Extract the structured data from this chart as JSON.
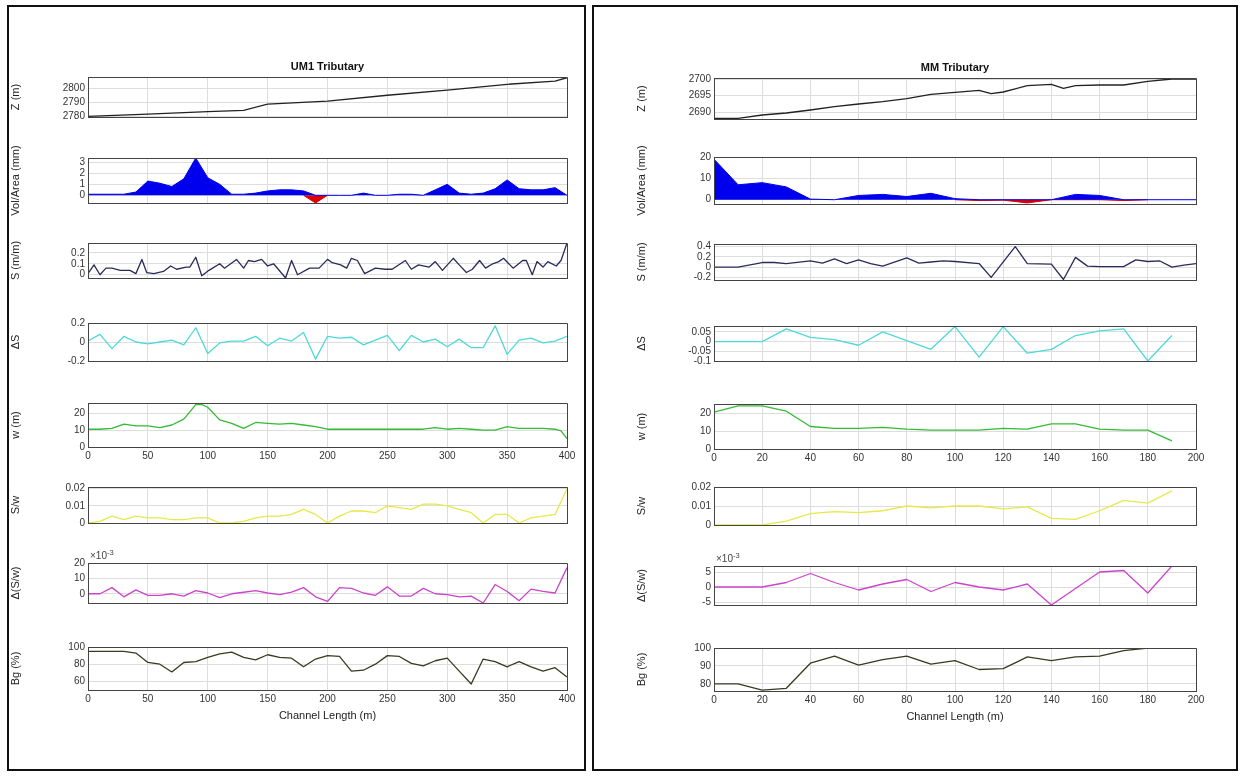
{
  "chart_data": [
    {
      "type": "line",
      "title": "UM1 Tributary",
      "ylabel": "Z (m)",
      "color": "#222222",
      "x": [
        0,
        50,
        100,
        130,
        150,
        200,
        250,
        300,
        350,
        390,
        400
      ],
      "values": [
        2780,
        2781.6,
        2783.4,
        2784.2,
        2788.7,
        2790.8,
        2795,
        2798.6,
        2802.8,
        2805,
        2807.5
      ],
      "xlim": [
        0,
        400
      ],
      "xticks": [
        0,
        50,
        100,
        150,
        200,
        250,
        300,
        350,
        400
      ],
      "ylim": [
        2779.5,
        2808
      ],
      "yticks": [
        2780,
        2790,
        2800
      ],
      "grid": true,
      "tick_labels": "y"
    },
    {
      "type": "area",
      "ylabel": "Vol/Area (mm)",
      "series": [
        {
          "type": "area",
          "color": "#0000ee",
          "x": [
            0,
            20,
            30,
            40,
            50,
            60,
            70,
            80,
            90,
            100,
            110,
            120,
            130,
            140,
            150,
            160,
            170,
            180,
            185,
            190,
            200,
            210,
            220,
            230,
            240,
            250,
            260,
            270,
            280,
            290,
            300,
            310,
            320,
            330,
            340,
            350,
            360,
            370,
            380,
            390,
            400
          ],
          "values": [
            0.1,
            0.1,
            0.1,
            0.3,
            1.3,
            1.1,
            0.8,
            1.5,
            3.4,
            1.6,
            1,
            0.1,
            0.1,
            0.2,
            0.4,
            0.5,
            0.5,
            0.4,
            0.2,
            0,
            0,
            0,
            0,
            0.2,
            0,
            0,
            0.1,
            0.1,
            0,
            0.5,
            1,
            0.2,
            0.1,
            0.2,
            0.6,
            1.4,
            0.6,
            0.5,
            0.5,
            0.7,
            0
          ]
        },
        {
          "type": "area",
          "color": "#dd0000",
          "x": [
            180,
            190,
            200
          ],
          "values": [
            0,
            -0.7,
            0
          ]
        }
      ],
      "xlim": [
        0,
        400
      ],
      "xticks": [
        0,
        50,
        100,
        150,
        200,
        250,
        300,
        350,
        400
      ],
      "ylim": [
        -0.7,
        3.4
      ],
      "yticks": [
        0,
        1,
        2,
        3
      ],
      "grid": true,
      "tick_labels": "y"
    },
    {
      "type": "line",
      "ylabel": "S (m/m)",
      "color": "#2b2b5a",
      "x": [
        0,
        5,
        10,
        15,
        20,
        27,
        35,
        40,
        45,
        49,
        55,
        63,
        69,
        74,
        82,
        85,
        90,
        95,
        101,
        110,
        114,
        124,
        130,
        134,
        139,
        145,
        150,
        155,
        165,
        170,
        175,
        185,
        193,
        200,
        204,
        211,
        216,
        220,
        225,
        231,
        240,
        248,
        254,
        265,
        270,
        276,
        285,
        290,
        296,
        305,
        310,
        316,
        321,
        327,
        332,
        338,
        343,
        347,
        355,
        363,
        366,
        371,
        375,
        380,
        384,
        391,
        395,
        400
      ],
      "values": [
        0.01,
        0.09,
        0,
        0.06,
        0.06,
        0.04,
        0.04,
        0.01,
        0.14,
        0.02,
        0.01,
        0.03,
        0.08,
        0.05,
        0.07,
        0.07,
        0.16,
        -0.01,
        0.04,
        0.1,
        0.06,
        0.14,
        0.06,
        0.13,
        0.12,
        0.14,
        0.08,
        0.1,
        -0.03,
        0.13,
        0,
        0.06,
        0.06,
        0.14,
        0.11,
        0.09,
        0.06,
        0.15,
        0.13,
        0.01,
        0.06,
        0.05,
        0.05,
        0.13,
        0.05,
        0.09,
        0.07,
        0.12,
        0.04,
        0.15,
        0.09,
        0.02,
        0.05,
        0.13,
        0.06,
        0.1,
        0.12,
        0.15,
        0.06,
        0.13,
        0.13,
        0,
        0.12,
        0.07,
        0.12,
        0.08,
        0.13,
        0.29
      ],
      "xlim": [
        0,
        400
      ],
      "xticks": [
        0,
        50,
        100,
        150,
        200,
        250,
        300,
        350,
        400
      ],
      "ylim": [
        -0.03,
        0.29
      ],
      "yticks": [
        0,
        0.1,
        0.2
      ],
      "grid": true,
      "tick_labels": "y"
    },
    {
      "type": "line",
      "ylabel": "ΔS",
      "color": "#4dd9d9",
      "x": [
        0,
        10,
        20,
        30,
        40,
        50,
        60,
        70,
        80,
        90,
        100,
        110,
        120,
        130,
        140,
        150,
        160,
        170,
        180,
        190,
        200,
        210,
        220,
        230,
        240,
        250,
        260,
        270,
        280,
        290,
        300,
        310,
        320,
        330,
        340,
        350,
        360,
        370,
        380,
        390,
        400
      ],
      "values": [
        0.01,
        0.08,
        -0.07,
        0.06,
        0,
        -0.02,
        0,
        0.02,
        -0.03,
        0.15,
        -0.12,
        -0.01,
        0.01,
        0.01,
        0.06,
        -0.04,
        0.04,
        0.01,
        0.1,
        -0.18,
        0.06,
        0.04,
        0.05,
        -0.03,
        0.02,
        0.07,
        -0.09,
        0.07,
        0,
        0.03,
        -0.05,
        0.03,
        -0.06,
        -0.06,
        0.17,
        -0.13,
        0.02,
        0.04,
        -0.01,
        0.01,
        0.06
      ],
      "xlim": [
        0,
        400
      ],
      "xticks": [
        0,
        50,
        100,
        150,
        200,
        250,
        300,
        350,
        400
      ],
      "ylim": [
        -0.2,
        0.2
      ],
      "yticks": [
        -0.2,
        0,
        0.2
      ],
      "grid": true,
      "tick_labels": "y"
    },
    {
      "type": "line",
      "ylabel": "w (m)",
      "color": "#33bb33",
      "x": [
        0,
        10,
        20,
        30,
        40,
        50,
        60,
        70,
        80,
        90,
        95,
        100,
        110,
        120,
        130,
        140,
        150,
        160,
        170,
        180,
        190,
        200,
        250,
        280,
        290,
        300,
        310,
        320,
        330,
        340,
        350,
        360,
        370,
        380,
        390,
        395,
        400
      ],
      "values": [
        10.5,
        10.5,
        11,
        13.5,
        12.5,
        12.5,
        11.5,
        13,
        16.5,
        25,
        25,
        23.5,
        16,
        14,
        11,
        14.5,
        14,
        13.5,
        14,
        13,
        12,
        10.5,
        10.5,
        10.5,
        11.5,
        10.5,
        11,
        10.5,
        10,
        10,
        12,
        11,
        11,
        11,
        10.5,
        9.5,
        5
      ],
      "xlim": [
        0,
        400
      ],
      "xticks": [
        0,
        50,
        100,
        150,
        200,
        250,
        300,
        350,
        400
      ],
      "ylim": [
        0,
        26
      ],
      "yticks": [
        0,
        10,
        20
      ],
      "grid": true
    },
    {
      "type": "line",
      "ylabel": "S/w",
      "color": "#e8e84a",
      "x": [
        0,
        10,
        20,
        30,
        40,
        50,
        60,
        70,
        80,
        90,
        100,
        110,
        120,
        130,
        140,
        150,
        160,
        170,
        180,
        190,
        200,
        210,
        220,
        230,
        240,
        250,
        260,
        270,
        280,
        290,
        300,
        310,
        320,
        330,
        340,
        350,
        360,
        370,
        380,
        390,
        400
      ],
      "values": [
        0,
        0.001,
        0.004,
        0.002,
        0.004,
        0.003,
        0.003,
        0.002,
        0.002,
        0.003,
        0.003,
        0,
        0,
        0.001,
        0.003,
        0.004,
        0.004,
        0.005,
        0.008,
        0.005,
        0,
        0.004,
        0.007,
        0.007,
        0.006,
        0.01,
        0.009,
        0.008,
        0.011,
        0.011,
        0.01,
        0.008,
        0.006,
        0,
        0.005,
        0.005,
        0,
        0.003,
        0.004,
        0.005,
        0.02
      ],
      "xlim": [
        0,
        400
      ],
      "xticks": [
        0,
        50,
        100,
        150,
        200,
        250,
        300,
        350,
        400
      ],
      "ylim": [
        0,
        0.021
      ],
      "yticks": [
        0,
        0.01,
        0.02
      ],
      "grid": true,
      "tick_labels": "y"
    },
    {
      "type": "line",
      "ylabel": "Δ(S/w)",
      "annotations": [
        "×10$^{-3}$"
      ],
      "color": "#cc44cc",
      "x": [
        0,
        10,
        20,
        30,
        40,
        50,
        60,
        70,
        80,
        90,
        100,
        110,
        120,
        130,
        140,
        150,
        160,
        170,
        180,
        190,
        200,
        210,
        220,
        230,
        240,
        250,
        260,
        270,
        280,
        290,
        300,
        310,
        320,
        330,
        340,
        350,
        360,
        370,
        380,
        390,
        400
      ],
      "values": [
        0,
        0,
        4,
        -2,
        2.5,
        -1,
        -1,
        0,
        -1.5,
        2,
        0.5,
        -2.5,
        0,
        1,
        2,
        0.5,
        -0.5,
        1,
        4,
        -2,
        -5,
        4,
        3.5,
        0.5,
        -1,
        4.5,
        -1.5,
        -1.5,
        3.5,
        0,
        -0.5,
        -2,
        -1.5,
        -6,
        6,
        1.5,
        -4.5,
        3,
        1.5,
        0.5,
        17
      ],
      "xlim": [
        0,
        400
      ],
      "xticks": [
        0,
        50,
        100,
        150,
        200,
        250,
        300,
        350,
        400
      ],
      "ylim": [
        -6,
        20
      ],
      "yticks": [
        0,
        10,
        20
      ],
      "grid": true,
      "tick_labels": "y"
    },
    {
      "type": "line",
      "ylabel": "Bg (%)",
      "xlabel": "Channel Length (m)",
      "color": "#3a3a20",
      "x": [
        0,
        10,
        20,
        30,
        40,
        50,
        60,
        70,
        80,
        90,
        100,
        110,
        120,
        130,
        140,
        150,
        160,
        170,
        180,
        190,
        200,
        210,
        220,
        230,
        240,
        250,
        260,
        270,
        280,
        290,
        300,
        310,
        320,
        330,
        340,
        350,
        360,
        370,
        380,
        390,
        400
      ],
      "values": [
        95,
        95,
        95,
        95,
        93,
        82,
        80,
        71,
        82,
        83,
        88,
        92,
        94,
        88,
        85,
        91,
        88,
        87,
        77,
        86,
        90,
        89,
        72,
        73,
        80,
        90,
        89,
        81,
        78,
        84,
        87,
        72,
        57,
        86,
        83,
        77,
        83,
        77,
        72,
        76,
        65
      ],
      "xlim": [
        0,
        400
      ],
      "xticks": [
        0,
        50,
        100,
        150,
        200,
        250,
        300,
        350,
        400
      ],
      "ylim": [
        50,
        100
      ],
      "yticks": [
        60,
        80,
        100
      ],
      "grid": true
    },
    {
      "type": "line",
      "title": "MM Tributary",
      "ylabel": "Z (m)",
      "color": "#222222",
      "x": [
        0,
        10,
        20,
        30,
        40,
        50,
        60,
        70,
        80,
        90,
        100,
        110,
        115,
        120,
        130,
        140,
        145,
        150,
        160,
        170,
        180,
        190,
        200
      ],
      "values": [
        2688.2,
        2688.2,
        2689.2,
        2689.8,
        2690.7,
        2691.7,
        2692.5,
        2693.2,
        2694.1,
        2695.4,
        2696,
        2696.6,
        2695.6,
        2696.1,
        2698,
        2698.4,
        2697.2,
        2698,
        2698.2,
        2698.2,
        2699.3,
        2700,
        2700
      ],
      "xlim": [
        0,
        200
      ],
      "xticks": [
        0,
        20,
        40,
        60,
        80,
        100,
        120,
        140,
        160,
        180,
        200
      ],
      "ylim": [
        2688,
        2700.3
      ],
      "yticks": [
        2690,
        2695,
        2700
      ],
      "grid": true,
      "tick_labels": "y"
    },
    {
      "type": "area",
      "ylabel": "Vol/Area (mm)",
      "series": [
        {
          "type": "area",
          "color": "#0000ee",
          "x": [
            0,
            10,
            20,
            30,
            40,
            50,
            60,
            70,
            80,
            90,
            100,
            110,
            120,
            130,
            140,
            150,
            160,
            170,
            180,
            190,
            200
          ],
          "values": [
            19,
            7,
            8,
            6,
            0.3,
            0,
            2,
            2.5,
            1.5,
            3,
            0.5,
            0,
            0,
            0,
            0,
            2.5,
            2,
            0,
            0,
            0,
            0
          ]
        },
        {
          "type": "area",
          "color": "#dd0000",
          "x": [
            100,
            110,
            120,
            130,
            140,
            160,
            170,
            180
          ],
          "values": [
            0,
            -0.4,
            -0.2,
            -1.5,
            0,
            0,
            -0.4,
            0
          ]
        }
      ],
      "xlim": [
        0,
        200
      ],
      "xticks": [
        0,
        20,
        40,
        60,
        80,
        100,
        120,
        140,
        160,
        180,
        200
      ],
      "ylim": [
        -2,
        20
      ],
      "yticks": [
        0,
        10,
        20
      ],
      "grid": true,
      "tick_labels": "y"
    },
    {
      "type": "line",
      "ylabel": "S (m/m)",
      "color": "#2b2b5a",
      "x": [
        0,
        10,
        20,
        25,
        30,
        40,
        45,
        50,
        55,
        60,
        65,
        70,
        80,
        85,
        90,
        95,
        100,
        110,
        115,
        125,
        130,
        140,
        145,
        150,
        155,
        160,
        170,
        175,
        180,
        185,
        190,
        195,
        200
      ],
      "values": [
        0,
        0,
        0.09,
        0.09,
        0.07,
        0.12,
        0.08,
        0.16,
        0.07,
        0.14,
        0.07,
        0.02,
        0.18,
        0.08,
        0.1,
        0.12,
        0.11,
        0.07,
        -0.2,
        0.4,
        0.07,
        0.06,
        -0.24,
        0.19,
        0.02,
        0.01,
        0.01,
        0.14,
        0.11,
        0.12,
        0,
        0.04,
        0.07
      ],
      "xlim": [
        0,
        200
      ],
      "xticks": [
        0,
        20,
        40,
        60,
        80,
        100,
        120,
        140,
        160,
        180,
        200
      ],
      "ylim": [
        -0.25,
        0.45
      ],
      "yticks": [
        -0.2,
        0,
        0.2,
        0.4
      ],
      "grid": true,
      "tick_labels": "y"
    },
    {
      "type": "line",
      "ylabel": "ΔS",
      "color": "#4dd9d9",
      "x": [
        0,
        10,
        20,
        30,
        40,
        50,
        60,
        70,
        80,
        90,
        100,
        110,
        120,
        130,
        140,
        150,
        160,
        170,
        180,
        190
      ],
      "values": [
        0,
        0,
        0,
        0.065,
        0.022,
        0.01,
        -0.019,
        0.05,
        0.005,
        -0.04,
        0.077,
        -0.08,
        0.077,
        -0.06,
        -0.04,
        0.031,
        0.055,
        0.065,
        -0.1,
        0.031
      ],
      "xlim": [
        0,
        200
      ],
      "xticks": [
        0,
        20,
        40,
        60,
        80,
        100,
        120,
        140,
        160,
        180,
        200
      ],
      "ylim": [
        -0.1,
        0.08
      ],
      "yticks": [
        -0.1,
        -0.05,
        0,
        0.05
      ],
      "grid": true,
      "tick_labels": "y"
    },
    {
      "type": "line",
      "ylabel": "w (m)",
      "color": "#33bb33",
      "x": [
        0,
        10,
        20,
        30,
        40,
        50,
        60,
        70,
        80,
        90,
        100,
        110,
        120,
        130,
        140,
        150,
        160,
        170,
        180,
        190
      ],
      "values": [
        20.5,
        24,
        24,
        21,
        12.5,
        11.5,
        11.5,
        12,
        11,
        10.5,
        10.5,
        10.5,
        11.5,
        11,
        14,
        14,
        11,
        10.5,
        10.5,
        4.5
      ],
      "xlim": [
        0,
        200
      ],
      "xticks": [
        0,
        20,
        40,
        60,
        80,
        100,
        120,
        140,
        160,
        180,
        200
      ],
      "ylim": [
        0,
        25
      ],
      "yticks": [
        0,
        10,
        20
      ],
      "grid": true
    },
    {
      "type": "line",
      "ylabel": "S/w",
      "color": "#e8e84a",
      "x": [
        0,
        10,
        20,
        30,
        40,
        50,
        60,
        70,
        80,
        90,
        100,
        110,
        120,
        130,
        140,
        150,
        160,
        170,
        180,
        190
      ],
      "values": [
        0,
        0,
        0,
        0.002,
        0.006,
        0.007,
        0.0065,
        0.0075,
        0.01,
        0.009,
        0.01,
        0.01,
        0.0085,
        0.0095,
        0.0035,
        0.003,
        0.0075,
        0.013,
        0.0115,
        0.018
      ],
      "xlim": [
        0,
        200
      ],
      "xticks": [
        0,
        20,
        40,
        60,
        80,
        100,
        120,
        140,
        160,
        180,
        200
      ],
      "ylim": [
        0,
        0.02
      ],
      "yticks": [
        0,
        0.01,
        0.02
      ],
      "grid": true,
      "tick_labels": "y"
    },
    {
      "type": "line",
      "ylabel": "Δ(S/w)",
      "annotations": [
        "×10$^{-3}$"
      ],
      "color": "#cc44cc",
      "x": [
        0,
        10,
        20,
        30,
        40,
        50,
        60,
        70,
        80,
        90,
        100,
        110,
        120,
        130,
        140,
        150,
        160,
        170,
        180,
        190
      ],
      "values": [
        0,
        0,
        0,
        1.5,
        4.5,
        1.5,
        -1,
        1,
        2.5,
        -1.5,
        1.5,
        0,
        -1,
        1,
        -6,
        -0.5,
        5,
        5.5,
        -2,
        7
      ],
      "xlim": [
        0,
        200
      ],
      "xticks": [
        0,
        20,
        40,
        60,
        80,
        100,
        120,
        140,
        160,
        180,
        200
      ],
      "ylim": [
        -6,
        7
      ],
      "yticks": [
        -5,
        0,
        5
      ],
      "grid": true,
      "tick_labels": "y"
    },
    {
      "type": "line",
      "ylabel": "Bg (%)",
      "xlabel": "Channel Length (m)",
      "color": "#3a3a20",
      "x": [
        0,
        10,
        20,
        30,
        40,
        50,
        60,
        70,
        80,
        90,
        100,
        110,
        120,
        130,
        140,
        150,
        160,
        170,
        180,
        190
      ],
      "values": [
        80,
        80,
        76.5,
        77.5,
        91.5,
        95.5,
        90.5,
        93.5,
        95.5,
        91,
        93,
        88,
        88.5,
        95,
        93,
        95,
        95.5,
        98.5,
        100,
        100
      ],
      "xlim": [
        0,
        200
      ],
      "xticks": [
        0,
        20,
        40,
        60,
        80,
        100,
        120,
        140,
        160,
        180,
        200
      ],
      "ylim": [
        76,
        100
      ],
      "yticks": [
        80,
        90,
        100
      ],
      "grid": true
    }
  ]
}
